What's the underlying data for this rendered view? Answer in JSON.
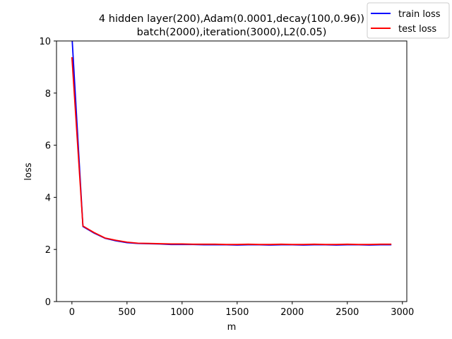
{
  "chart_data": {
    "type": "line",
    "title_line1": "4 hidden layer(200),Adam(0.0001,decay(100,0.96))",
    "title_line2": "batch(2000),iteration(3000),L2(0.05)",
    "xlabel": "m",
    "ylabel": "loss",
    "xlim": [
      -140,
      3040
    ],
    "ylim": [
      0,
      10
    ],
    "xticks": [
      0,
      500,
      1000,
      1500,
      2000,
      2500,
      3000
    ],
    "yticks": [
      0,
      2,
      4,
      6,
      8,
      10
    ],
    "legend_position": "top-right",
    "grid": false,
    "x": [
      0,
      100,
      200,
      300,
      400,
      500,
      600,
      700,
      800,
      900,
      1000,
      1100,
      1200,
      1300,
      1400,
      1500,
      1600,
      1700,
      1800,
      1900,
      2000,
      2100,
      2200,
      2300,
      2400,
      2500,
      2600,
      2700,
      2800,
      2900
    ],
    "series": [
      {
        "name": "train loss",
        "color": "#0000ff",
        "values": [
          10.2,
          2.88,
          2.63,
          2.43,
          2.33,
          2.26,
          2.23,
          2.22,
          2.21,
          2.19,
          2.19,
          2.19,
          2.18,
          2.18,
          2.18,
          2.17,
          2.18,
          2.18,
          2.17,
          2.18,
          2.18,
          2.17,
          2.18,
          2.18,
          2.17,
          2.18,
          2.18,
          2.17,
          2.18,
          2.18
        ]
      },
      {
        "name": "test loss",
        "color": "#ff0000",
        "values": [
          9.38,
          2.9,
          2.65,
          2.44,
          2.35,
          2.28,
          2.24,
          2.23,
          2.22,
          2.21,
          2.21,
          2.2,
          2.2,
          2.2,
          2.19,
          2.19,
          2.2,
          2.19,
          2.19,
          2.2,
          2.19,
          2.19,
          2.2,
          2.19,
          2.19,
          2.2,
          2.19,
          2.19,
          2.2,
          2.2
        ]
      }
    ]
  }
}
